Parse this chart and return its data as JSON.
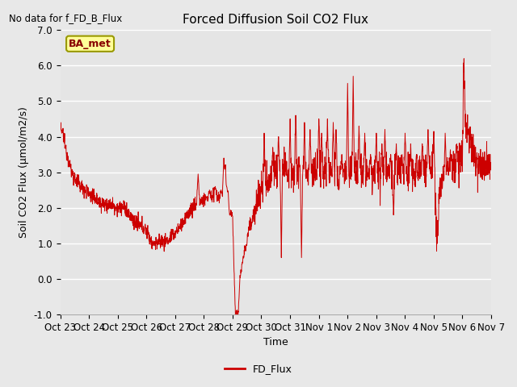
{
  "title": "Forced Diffusion Soil CO2 Flux",
  "no_data_text": "No data for f_FD_B_Flux",
  "ylabel": "Soil CO2 Flux (μmol/m2/s)",
  "xlabel": "Time",
  "ylim": [
    -1.0,
    7.0
  ],
  "yticks": [
    -1.0,
    0.0,
    1.0,
    2.0,
    3.0,
    4.0,
    5.0,
    6.0,
    7.0
  ],
  "line_color": "#cc0000",
  "line_width": 0.8,
  "legend_label": "FD_Flux",
  "legend_line_color": "#cc0000",
  "bg_color": "#e8e8e8",
  "axes_bg_color": "#e5e5e5",
  "xtick_labels": [
    "Oct 23",
    "Oct 24",
    "Oct 25",
    "Oct 26",
    "Oct 27",
    "Oct 28",
    "Oct 29",
    "Oct 30",
    "Oct 31",
    "Nov 1",
    "Nov 2",
    "Nov 3",
    "Nov 4",
    "Nov 5",
    "Nov 6",
    "Nov 7"
  ],
  "ba_met_box_color": "#ffff99",
  "ba_met_border_color": "#999900",
  "ba_met_text": "BA_met",
  "ba_met_text_color": "#880000",
  "grid_color": "#ffffff",
  "title_fontsize": 11,
  "label_fontsize": 9,
  "tick_fontsize": 8.5
}
